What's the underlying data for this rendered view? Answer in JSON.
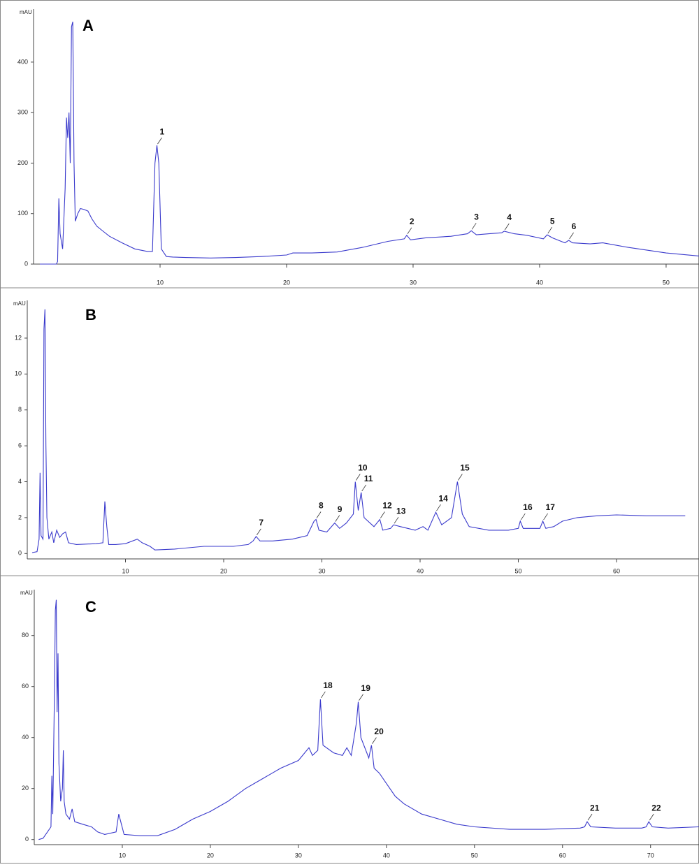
{
  "chart_data": [
    {
      "type": "line",
      "title": "A",
      "y_label": "mAU",
      "xlim": [
        0,
        52.6
      ],
      "ylim": [
        0,
        505
      ],
      "xticks": [
        10,
        20,
        30,
        40,
        50
      ],
      "yticks": [
        0,
        100,
        200,
        300,
        400
      ],
      "x": [
        0.5,
        1.8,
        1.9,
        2.0,
        2.1,
        2.3,
        2.5,
        2.6,
        2.7,
        2.8,
        2.9,
        3.0,
        3.1,
        3.2,
        3.3,
        3.5,
        3.7,
        4.0,
        4.3,
        4.6,
        5.0,
        5.5,
        6,
        7,
        8,
        9,
        9.4,
        9.6,
        9.75,
        9.9,
        10.1,
        10.5,
        11,
        12,
        14,
        16,
        18,
        20,
        20.5,
        22,
        24,
        26,
        28,
        29.3,
        29.5,
        29.8,
        31,
        33,
        34.3,
        34.6,
        35,
        36,
        37,
        37.2,
        38,
        39,
        40.3,
        40.6,
        41,
        42,
        42.3,
        42.6,
        44,
        45,
        47,
        50,
        52.6
      ],
      "series": [
        {
          "color": "#3a3acc",
          "values": [
            0,
            0,
            5,
            130,
            60,
            30,
            150,
            290,
            250,
            300,
            200,
            470,
            480,
            200,
            85,
            100,
            110,
            108,
            105,
            90,
            75,
            65,
            55,
            42,
            30,
            25,
            25,
            200,
            235,
            200,
            30,
            15,
            14,
            13,
            12,
            13,
            15,
            18,
            22,
            22,
            24,
            33,
            45,
            50,
            57,
            48,
            52,
            55,
            60,
            66,
            58,
            60,
            62,
            65,
            60,
            57,
            50,
            58,
            52,
            42,
            47,
            42,
            40,
            42,
            33,
            22,
            16
          ]
        }
      ],
      "annotations": [
        {
          "label": "1",
          "x": 9.75,
          "y": 235
        },
        {
          "label": "2",
          "x": 29.5,
          "y": 57
        },
        {
          "label": "3",
          "x": 34.6,
          "y": 66
        },
        {
          "label": "4",
          "x": 37.2,
          "y": 65
        },
        {
          "label": "5",
          "x": 40.6,
          "y": 58
        },
        {
          "label": "6",
          "x": 42.3,
          "y": 47
        }
      ]
    },
    {
      "type": "line",
      "title": "B",
      "y_label": "mAU",
      "xlim": [
        0,
        68.4
      ],
      "ylim": [
        -0.3,
        14.1
      ],
      "xticks": [
        10,
        20,
        30,
        40,
        50,
        60
      ],
      "yticks": [
        0,
        2,
        4,
        6,
        8,
        10,
        12
      ],
      "x": [
        0.5,
        1.0,
        1.2,
        1.3,
        1.4,
        1.6,
        1.7,
        1.8,
        1.9,
        2.0,
        2.2,
        2.5,
        2.7,
        3.0,
        3.3,
        3.6,
        3.9,
        4.2,
        5,
        7,
        7.7,
        7.9,
        8.1,
        8.3,
        9,
        10,
        11.2,
        11.7,
        12.5,
        13,
        15,
        18,
        21,
        22.5,
        23,
        23.3,
        23.7,
        25,
        27,
        28.5,
        29.2,
        29.4,
        29.7,
        30.5,
        31.3,
        31.8,
        32.5,
        33.2,
        33.4,
        33.7,
        34.0,
        34.3,
        35.3,
        35.9,
        36.2,
        37.0,
        37.3,
        38,
        39.5,
        40.3,
        40.8,
        41.6,
        42.2,
        43.2,
        43.8,
        44.3,
        45,
        47,
        49,
        50.0,
        50.2,
        50.5,
        52.2,
        52.5,
        52.8,
        53.6,
        54.5,
        56,
        58,
        60,
        63,
        66,
        67
      ],
      "series": [
        {
          "color": "#3a3acc",
          "values": [
            0.05,
            0.1,
            0.8,
            4.5,
            1,
            0.8,
            12.5,
            13.6,
            6,
            2,
            0.8,
            1.2,
            0.6,
            1.3,
            0.9,
            1.1,
            1.2,
            0.6,
            0.5,
            0.55,
            0.6,
            2.9,
            1.5,
            0.5,
            0.5,
            0.55,
            0.8,
            0.6,
            0.4,
            0.2,
            0.25,
            0.4,
            0.4,
            0.5,
            0.7,
            0.95,
            0.7,
            0.7,
            0.8,
            1.0,
            1.8,
            1.9,
            1.3,
            1.2,
            1.7,
            1.4,
            1.7,
            2.2,
            4.0,
            2.4,
            3.4,
            2.0,
            1.5,
            1.9,
            1.3,
            1.4,
            1.6,
            1.5,
            1.3,
            1.5,
            1.3,
            2.3,
            1.6,
            2.0,
            4.0,
            2.2,
            1.5,
            1.3,
            1.3,
            1.4,
            1.8,
            1.4,
            1.4,
            1.8,
            1.4,
            1.5,
            1.8,
            2.0,
            2.1,
            2.15,
            2.1,
            2.1,
            2.1
          ]
        }
      ],
      "annotations": [
        {
          "label": "7",
          "x": 23.3,
          "y": 0.95
        },
        {
          "label": "8",
          "x": 29.4,
          "y": 1.9
        },
        {
          "label": "9",
          "x": 31.3,
          "y": 1.7
        },
        {
          "label": "10",
          "x": 33.4,
          "y": 4.0
        },
        {
          "label": "11",
          "x": 34.0,
          "y": 3.4
        },
        {
          "label": "12",
          "x": 35.9,
          "y": 1.9
        },
        {
          "label": "13",
          "x": 37.3,
          "y": 1.6
        },
        {
          "label": "14",
          "x": 41.6,
          "y": 2.3
        },
        {
          "label": "15",
          "x": 43.8,
          "y": 4.0
        },
        {
          "label": "16",
          "x": 50.2,
          "y": 1.8
        },
        {
          "label": "17",
          "x": 52.5,
          "y": 1.8
        }
      ]
    },
    {
      "type": "line",
      "title": "C",
      "y_label": "mAU",
      "xlim": [
        0,
        75.5
      ],
      "ylim": [
        -2,
        98
      ],
      "xticks": [
        10,
        20,
        30,
        40,
        50,
        60,
        70
      ],
      "yticks": [
        0,
        20,
        40,
        60,
        80
      ],
      "x": [
        0.5,
        1.0,
        1.5,
        1.9,
        2.0,
        2.1,
        2.3,
        2.4,
        2.5,
        2.6,
        2.7,
        2.8,
        3.0,
        3.2,
        3.3,
        3.4,
        3.6,
        4.0,
        4.3,
        4.6,
        5.5,
        6.5,
        7.2,
        8,
        9.3,
        9.6,
        9.9,
        10.2,
        12,
        14,
        16,
        18,
        20,
        22,
        24,
        25,
        26,
        27,
        28,
        30,
        31.2,
        31.6,
        32.2,
        32.5,
        32.8,
        34,
        35,
        35.5,
        36,
        36.6,
        36.8,
        37.1,
        38,
        38.3,
        38.6,
        39.2,
        40,
        41,
        42,
        44,
        46,
        48,
        50,
        54,
        58,
        62,
        62.5,
        62.8,
        63.2,
        66,
        69,
        69.5,
        69.8,
        70.2,
        72,
        75.5
      ],
      "series": [
        {
          "color": "#3a3acc",
          "values": [
            0,
            0.5,
            3,
            5,
            25,
            10,
            60,
            90,
            94,
            50,
            73,
            30,
            15,
            20,
            35,
            15,
            10,
            8,
            12,
            7,
            6,
            5,
            3,
            2,
            3,
            10,
            6,
            2,
            1.5,
            1.5,
            4,
            8,
            11,
            15,
            20,
            22,
            24,
            26,
            28,
            31,
            36,
            33,
            35,
            55,
            37,
            34,
            33,
            36,
            33,
            46,
            54,
            40,
            32,
            37,
            28,
            26,
            22,
            17,
            14,
            10,
            8,
            6,
            5,
            4,
            4,
            4.5,
            5,
            7,
            5,
            4.5,
            4.5,
            5,
            7,
            5,
            4.5,
            5
          ]
        }
      ],
      "annotations": [
        {
          "label": "18",
          "x": 32.5,
          "y": 55
        },
        {
          "label": "19",
          "x": 36.8,
          "y": 54
        },
        {
          "label": "20",
          "x": 38.3,
          "y": 37
        },
        {
          "label": "21",
          "x": 62.8,
          "y": 7
        },
        {
          "label": "22",
          "x": 69.8,
          "y": 7
        }
      ]
    }
  ]
}
